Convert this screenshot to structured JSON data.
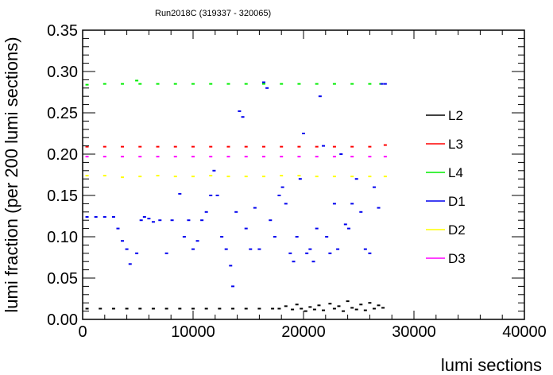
{
  "chart_data": {
    "type": "scatter",
    "title": "Run2018C (319337 - 320065)",
    "xlabel": "lumi sections",
    "ylabel": "lumi fraction (per 200 lumi sections)",
    "xlim": [
      0,
      40000
    ],
    "ylim": [
      0,
      0.35
    ],
    "xticks": [
      0,
      10000,
      20000,
      30000,
      40000
    ],
    "xtick_labels": [
      "0",
      "10000",
      "20000",
      "30000",
      "40000"
    ],
    "yticks": [
      0,
      0.05,
      0.1,
      0.15,
      0.2,
      0.25,
      0.3,
      0.35
    ],
    "ytick_labels": [
      "0.00",
      "0.05",
      "0.10",
      "0.15",
      "0.20",
      "0.25",
      "0.30",
      "0.35"
    ],
    "grid": false,
    "legend_position": "right",
    "series": [
      {
        "name": "L2",
        "color": "#000000",
        "x": [
          400,
          1600,
          2800,
          4000,
          5200,
          6400,
          7600,
          8800,
          10000,
          11200,
          12400,
          13600,
          14800,
          16000,
          17200,
          17800,
          18400,
          19000,
          19400,
          19800,
          20200,
          20600,
          21000,
          21400,
          21800,
          22400,
          22800,
          23200,
          23600,
          24000,
          24400,
          24800,
          25200,
          25600,
          26000,
          26400,
          26800,
          27200
        ],
        "y": [
          0.013,
          0.013,
          0.013,
          0.013,
          0.013,
          0.013,
          0.013,
          0.013,
          0.013,
          0.013,
          0.013,
          0.013,
          0.013,
          0.013,
          0.013,
          0.013,
          0.016,
          0.012,
          0.018,
          0.013,
          0.01,
          0.015,
          0.012,
          0.017,
          0.011,
          0.019,
          0.013,
          0.016,
          0.01,
          0.022,
          0.014,
          0.012,
          0.018,
          0.011,
          0.02,
          0.013,
          0.017,
          0.014
        ]
      },
      {
        "name": "L3",
        "color": "#ff0000",
        "x": [
          400,
          2000,
          3600,
          5200,
          6800,
          8400,
          10000,
          11600,
          13200,
          14800,
          16400,
          18000,
          19600,
          21200,
          22800,
          24400,
          26000,
          27400
        ],
        "y": [
          0.209,
          0.209,
          0.209,
          0.209,
          0.209,
          0.209,
          0.209,
          0.209,
          0.209,
          0.209,
          0.209,
          0.209,
          0.209,
          0.209,
          0.209,
          0.209,
          0.209,
          0.211
        ]
      },
      {
        "name": "L4",
        "color": "#00ee00",
        "x": [
          400,
          2000,
          3600,
          4900,
          5200,
          6800,
          8400,
          10000,
          11600,
          13200,
          14800,
          16400,
          18000,
          19600,
          21200,
          22800,
          24400,
          26000,
          27000
        ],
        "y": [
          0.284,
          0.285,
          0.285,
          0.289,
          0.285,
          0.285,
          0.285,
          0.285,
          0.285,
          0.285,
          0.285,
          0.285,
          0.285,
          0.285,
          0.285,
          0.285,
          0.285,
          0.285,
          0.285
        ]
      },
      {
        "name": "D1",
        "color": "#0000ee",
        "x": [
          400,
          1200,
          2000,
          2800,
          3200,
          3600,
          4000,
          4300,
          4900,
          5300,
          5600,
          6000,
          6400,
          7000,
          7600,
          8100,
          8800,
          9200,
          9600,
          10000,
          10400,
          10800,
          11200,
          11600,
          11900,
          12200,
          12600,
          13000,
          13400,
          13600,
          13900,
          14200,
          14500,
          14800,
          15200,
          15600,
          16000,
          16400,
          16700,
          17000,
          17400,
          17800,
          18100,
          18400,
          18800,
          19100,
          19400,
          19700,
          20000,
          20300,
          20600,
          20900,
          21200,
          21500,
          21800,
          22100,
          22400,
          22800,
          23100,
          23400,
          23800,
          24100,
          24400,
          24800,
          25200,
          25600,
          26000,
          26400,
          26800,
          27100,
          27400
        ],
        "y": [
          0.124,
          0.124,
          0.124,
          0.124,
          0.11,
          0.095,
          0.085,
          0.067,
          0.08,
          0.12,
          0.124,
          0.122,
          0.118,
          0.12,
          0.08,
          0.12,
          0.152,
          0.1,
          0.12,
          0.085,
          0.095,
          0.12,
          0.13,
          0.15,
          0.18,
          0.15,
          0.1,
          0.085,
          0.065,
          0.04,
          0.13,
          0.252,
          0.245,
          0.11,
          0.085,
          0.135,
          0.085,
          0.287,
          0.28,
          0.12,
          0.1,
          0.15,
          0.16,
          0.14,
          0.08,
          0.07,
          0.1,
          0.17,
          0.225,
          0.08,
          0.085,
          0.07,
          0.11,
          0.27,
          0.21,
          0.1,
          0.08,
          0.14,
          0.085,
          0.2,
          0.115,
          0.11,
          0.14,
          0.17,
          0.13,
          0.085,
          0.08,
          0.16,
          0.135,
          0.285,
          0.285
        ]
      },
      {
        "name": "D2",
        "color": "#ffff00",
        "x": [
          400,
          2000,
          3600,
          5200,
          6800,
          8400,
          10000,
          11600,
          13200,
          14800,
          16400,
          18000,
          19600,
          21200,
          22800,
          24400,
          26000,
          27400
        ],
        "y": [
          0.174,
          0.174,
          0.172,
          0.173,
          0.174,
          0.173,
          0.173,
          0.174,
          0.173,
          0.173,
          0.173,
          0.174,
          0.174,
          0.173,
          0.173,
          0.173,
          0.173,
          0.173
        ]
      },
      {
        "name": "D3",
        "color": "#ff00ff",
        "x": [
          400,
          2000,
          3600,
          5200,
          6800,
          8400,
          10000,
          11600,
          13200,
          14800,
          16400,
          18000,
          19600,
          21200,
          22800,
          24400,
          26000,
          27400
        ],
        "y": [
          0.197,
          0.197,
          0.197,
          0.197,
          0.197,
          0.197,
          0.197,
          0.197,
          0.197,
          0.197,
          0.197,
          0.197,
          0.197,
          0.197,
          0.197,
          0.197,
          0.197,
          0.197
        ]
      }
    ]
  }
}
